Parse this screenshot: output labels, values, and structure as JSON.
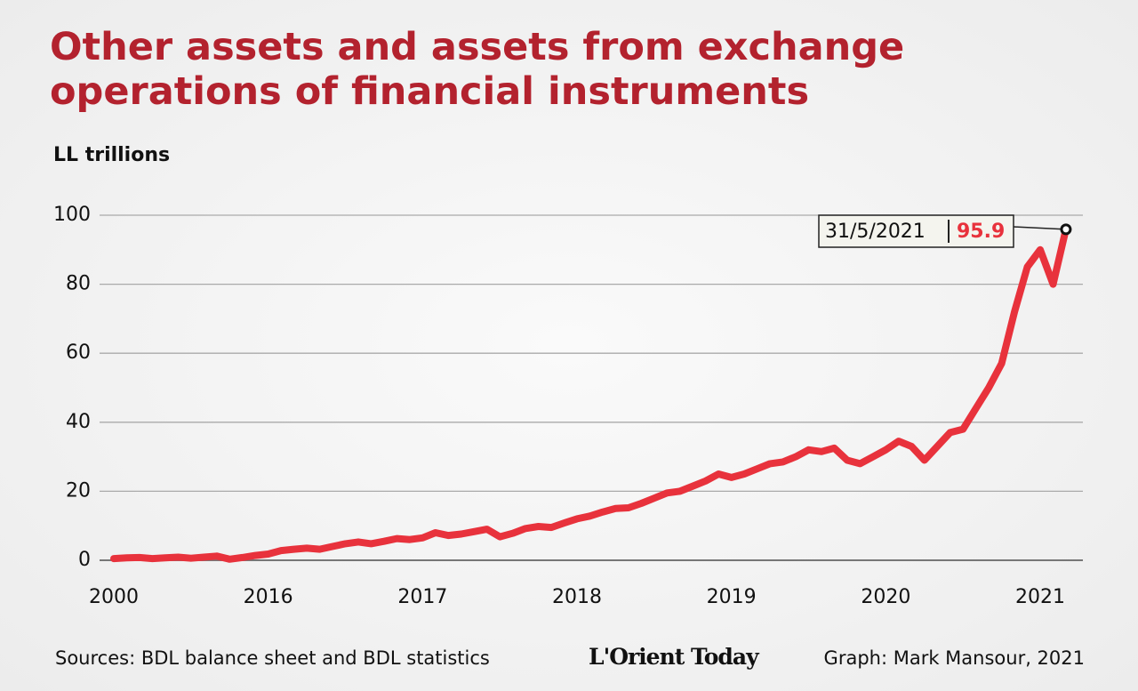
{
  "chart_data": {
    "type": "line",
    "title": "Other assets and assets from exchange operations of financial instruments",
    "y_label": "LL trillions",
    "categories": [
      "2000",
      null,
      null,
      null,
      null,
      null,
      null,
      null,
      null,
      null,
      null,
      null,
      "2016",
      null,
      null,
      null,
      null,
      null,
      null,
      null,
      null,
      null,
      null,
      null,
      "2017",
      null,
      null,
      null,
      null,
      null,
      null,
      null,
      null,
      null,
      null,
      null,
      "2018",
      null,
      null,
      null,
      null,
      null,
      null,
      null,
      null,
      null,
      null,
      null,
      "2019",
      null,
      null,
      null,
      null,
      null,
      null,
      null,
      null,
      null,
      null,
      null,
      "2020",
      null,
      null,
      null,
      null,
      null,
      null,
      null,
      null,
      null,
      null,
      null,
      "2021",
      null,
      null
    ],
    "values": [
      0.5,
      0.7,
      0.8,
      0.5,
      0.7,
      0.9,
      0.6,
      0.9,
      1.2,
      0.3,
      0.8,
      1.4,
      1.8,
      2.8,
      3.2,
      3.5,
      3.2,
      4,
      4.8,
      5.3,
      4.8,
      5.5,
      6.3,
      6,
      6.5,
      8,
      7.2,
      7.6,
      8.3,
      9,
      6.8,
      7.8,
      9.2,
      9.8,
      9.5,
      10.8,
      12,
      12.8,
      14,
      15,
      15.2,
      16.5,
      18,
      19.5,
      20,
      21.5,
      23,
      25,
      24,
      25,
      26.5,
      28,
      28.5,
      30,
      32,
      31.5,
      32.5,
      29,
      28,
      30,
      32,
      34.5,
      33,
      29,
      33,
      37,
      38,
      44,
      50,
      57,
      72,
      85,
      90,
      80,
      95.9
    ],
    "color": "#e8323c",
    "ylim": [
      0,
      100
    ],
    "yticks": [
      0,
      20,
      40,
      60,
      80,
      100
    ],
    "grid": true,
    "annotation": "31/5/2021",
    "source": "Sources: BDL balance sheet and BDL statistics",
    "logo": "L'Orient Today",
    "credit": "Graph: Mark Mansour, 2021"
  }
}
